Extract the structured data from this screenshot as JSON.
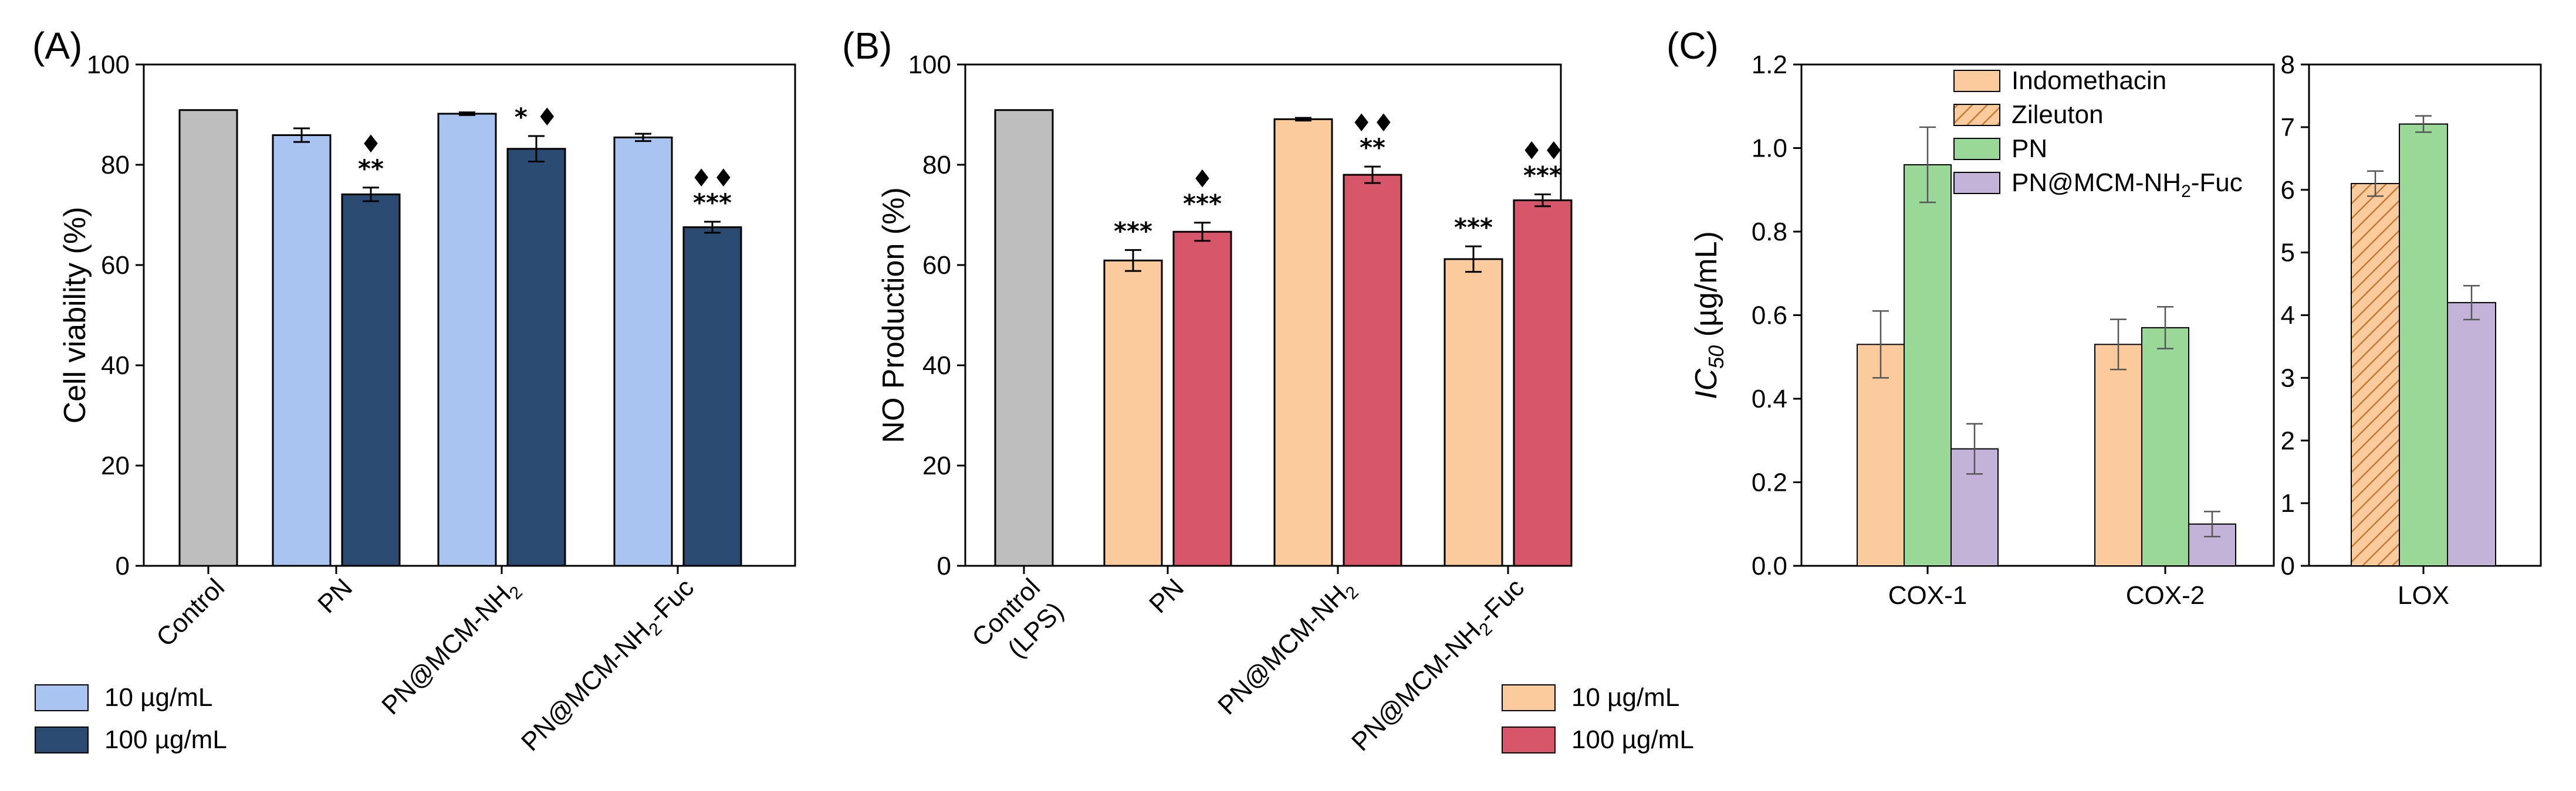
{
  "colors": {
    "gray": "#bebebe",
    "lightblue": "#a9c4f0",
    "darkblue": "#2a4a72",
    "peach": "#fbcb9c",
    "crimson": "#d8566a",
    "green": "#9ad898",
    "lavender": "#c3b3d9"
  },
  "chart_data": [
    {
      "panel": "(A)",
      "type": "bar",
      "ylabel": "Cell viability (%)",
      "ylim": [
        0,
        110
      ],
      "yticks": [
        "0",
        "20",
        "40",
        "60",
        "80",
        "100"
      ],
      "categories": [
        "Control",
        "PN",
        "PN@MCM-NH₂",
        "PN@MCM-NH₂-Fuc"
      ],
      "series": [
        {
          "name": "Control",
          "values": [
            100,
            null,
            null,
            null
          ],
          "errors": [
            0,
            null,
            null,
            null
          ],
          "color": "gray"
        },
        {
          "name": "10 µg/mL",
          "values": [
            null,
            94.5,
            99.2,
            94.0
          ],
          "errors": [
            null,
            1.5,
            0.3,
            0.8
          ],
          "color": "lightblue"
        },
        {
          "name": "100 µg/mL",
          "values": [
            null,
            81.5,
            91.5,
            74.3
          ],
          "errors": [
            null,
            1.5,
            2.8,
            1.2
          ],
          "color": "darkblue"
        }
      ],
      "annotations": [
        {
          "category": 1,
          "series": 2,
          "lines": [
            "♦",
            "**"
          ]
        },
        {
          "category": 2,
          "series": 2,
          "lines": [
            "* ♦"
          ]
        },
        {
          "category": 3,
          "series": 2,
          "lines": [
            "♦♦",
            "***"
          ]
        }
      ],
      "legend": [
        "10 µg/mL",
        "100 µg/mL"
      ]
    },
    {
      "panel": "(B)",
      "type": "bar",
      "ylabel": "NO Production (%)",
      "ylim": [
        0,
        110
      ],
      "yticks": [
        "0",
        "20",
        "40",
        "60",
        "80",
        "100"
      ],
      "categories": [
        "Control (LPS)",
        "PN",
        "PN@MCM-NH₂",
        "PN@MCM-NH₂-Fuc"
      ],
      "series": [
        {
          "name": "Control (LPS)",
          "values": [
            100,
            null,
            null,
            null
          ],
          "errors": [
            0,
            null,
            null,
            null
          ],
          "color": "gray"
        },
        {
          "name": "10 µg/mL",
          "values": [
            null,
            67.0,
            98.0,
            67.3
          ],
          "errors": [
            null,
            2.3,
            0.3,
            2.8
          ],
          "color": "peach"
        },
        {
          "name": "100 µg/mL",
          "values": [
            null,
            73.3,
            85.8,
            80.2
          ],
          "errors": [
            null,
            2.0,
            1.8,
            1.3
          ],
          "color": "crimson"
        }
      ],
      "annotations": [
        {
          "category": 1,
          "series": 1,
          "lines": [
            "***"
          ]
        },
        {
          "category": 1,
          "series": 2,
          "lines": [
            "♦",
            "***"
          ]
        },
        {
          "category": 2,
          "series": 2,
          "lines": [
            "♦♦",
            "**"
          ]
        },
        {
          "category": 3,
          "series": 1,
          "lines": [
            "***"
          ]
        },
        {
          "category": 3,
          "series": 2,
          "lines": [
            "♦♦",
            "***"
          ]
        }
      ],
      "legend": [
        "10 µg/mL",
        "100 µg/mL"
      ]
    },
    {
      "panel": "(C)",
      "type": "bar",
      "ylabel": "IC50 (µg/mL)",
      "ylim": [
        0,
        1.2
      ],
      "yticks": [
        "0.0",
        "0.2",
        "0.4",
        "0.6",
        "0.8",
        "1.0",
        "1.2"
      ],
      "categories": [
        "COX-1",
        "COX-2"
      ],
      "series": [
        {
          "name": "Indomethacin",
          "values": [
            0.53,
            0.53
          ],
          "errors": [
            0.08,
            0.06
          ],
          "color": "peach"
        },
        {
          "name": "PN",
          "values": [
            0.96,
            0.57
          ],
          "errors": [
            0.09,
            0.05
          ],
          "color": "green"
        },
        {
          "name": "PN@MCM-NH₂-Fuc",
          "values": [
            0.28,
            0.1
          ],
          "errors": [
            0.06,
            0.03
          ],
          "color": "lavender"
        }
      ],
      "legend": [
        "Indomethacin",
        "Zileuton",
        "PN",
        "PN@MCM-NH₂-Fuc"
      ]
    },
    {
      "panel": "(C) LOX",
      "type": "bar",
      "ylim": [
        0,
        8
      ],
      "yticks": [
        "0",
        "1",
        "2",
        "3",
        "4",
        "5",
        "6",
        "7",
        "8"
      ],
      "categories": [
        "LOX"
      ],
      "series": [
        {
          "name": "Zileuton",
          "values": [
            6.1
          ],
          "errors": [
            0.2
          ],
          "color": "peach",
          "hatched": true
        },
        {
          "name": "PN",
          "values": [
            7.05
          ],
          "errors": [
            0.13
          ],
          "color": "green"
        },
        {
          "name": "PN@MCM-NH₂-Fuc",
          "values": [
            4.2
          ],
          "errors": [
            0.27
          ],
          "color": "lavender"
        }
      ]
    }
  ]
}
